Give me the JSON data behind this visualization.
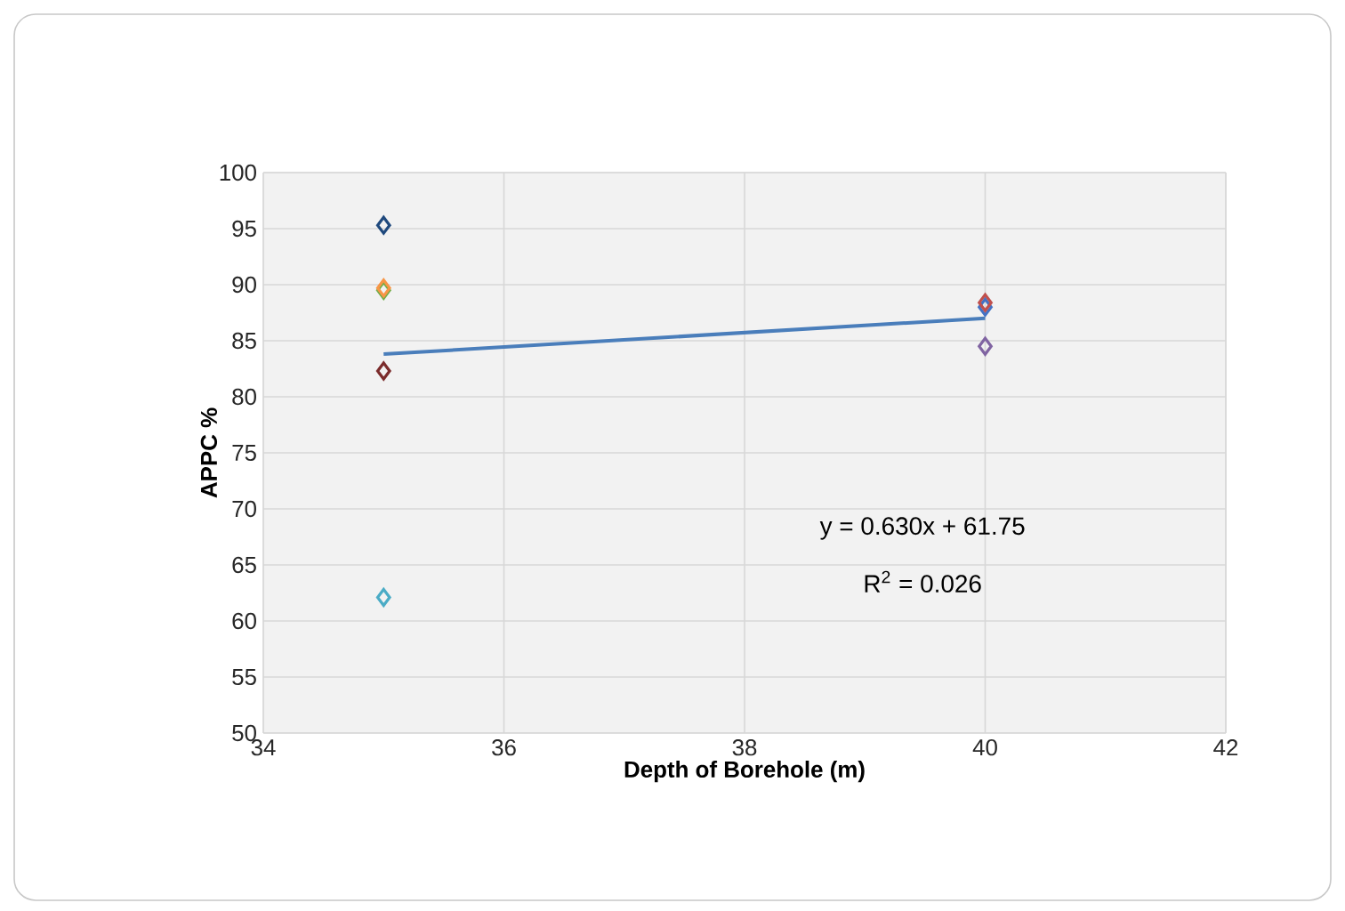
{
  "chart_data": {
    "type": "scatter",
    "xlabel": "Depth of Borehole  (m)",
    "ylabel": "APPC %",
    "marker": "diamond",
    "grid": true,
    "xlim": [
      34,
      42
    ],
    "xticks": [
      34,
      36,
      38,
      40,
      42
    ],
    "ylim": [
      50,
      100
    ],
    "yticks": [
      50,
      55,
      60,
      65,
      70,
      75,
      80,
      85,
      90,
      95,
      100
    ],
    "x": [
      35,
      40
    ],
    "series": [
      {
        "color": "#4bacc6",
        "values": [
          62.1,
          null
        ]
      },
      {
        "color": "#7b2c2c",
        "values": [
          82.3,
          null
        ]
      },
      {
        "color": "#70ad47",
        "values": [
          89.5,
          null
        ]
      },
      {
        "color": "#f79646",
        "values": [
          89.7,
          null
        ]
      },
      {
        "color": "#1f497d",
        "values": [
          95.3,
          null
        ]
      },
      {
        "color": "#4472c4",
        "values": [
          null,
          88.0
        ]
      },
      {
        "color": "#c0504d",
        "values": [
          null,
          88.4
        ]
      },
      {
        "color": "#8064a2",
        "values": [
          null,
          84.5
        ]
      },
      {
        "type": "line",
        "color": "#4a7ebb",
        "marker": "none",
        "values": [
          83.8,
          87.0
        ]
      }
    ],
    "annotations": [
      "y = 0.630x + 61.75",
      "R$^{2}$ = 0.026"
    ]
  }
}
